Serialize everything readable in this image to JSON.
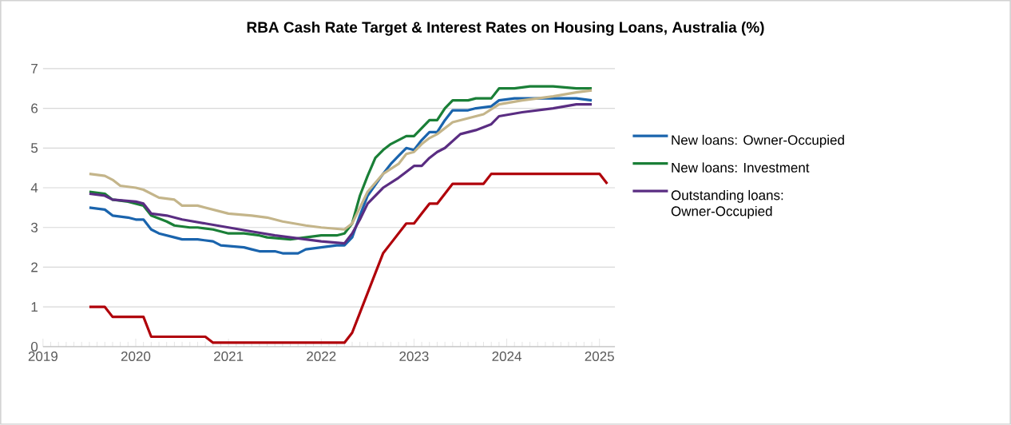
{
  "chart_data": {
    "type": "line",
    "title": "RBA Cash Rate Target & Interest Rates on Housing Loans, Australia (%)",
    "xlim": [
      "2019-01",
      "2025-03"
    ],
    "xticks": [
      "2019",
      "2020",
      "2021",
      "2022",
      "2023",
      "2024",
      "2025"
    ],
    "ylim": [
      0,
      7
    ],
    "yticks": [
      0,
      1,
      2,
      3,
      4,
      5,
      6,
      7
    ],
    "grid": "y",
    "legend": "right",
    "series": [
      {
        "name": "New loans: Owner-Occupied",
        "color": "#1a64ad",
        "x": [
          "2019-07",
          "2019-09",
          "2019-10",
          "2019-12",
          "2020-01",
          "2020-02",
          "2020-03",
          "2020-04",
          "2020-06",
          "2020-07",
          "2020-09",
          "2020-11",
          "2020-12",
          "2021-03",
          "2021-04",
          "2021-05",
          "2021-07",
          "2021-08",
          "2021-10",
          "2021-11",
          "2022-01",
          "2022-03",
          "2022-04",
          "2022-05",
          "2022-06",
          "2022-07",
          "2022-09",
          "2022-10",
          "2022-11",
          "2022-12",
          "2023-01",
          "2023-02",
          "2023-03",
          "2023-04",
          "2023-05",
          "2023-06",
          "2023-08",
          "2023-09",
          "2023-11",
          "2023-12",
          "2024-02",
          "2024-07",
          "2024-10",
          "2024-12"
        ],
        "values": [
          3.5,
          3.45,
          3.3,
          3.25,
          3.2,
          3.2,
          2.95,
          2.85,
          2.75,
          2.7,
          2.7,
          2.65,
          2.55,
          2.5,
          2.45,
          2.4,
          2.4,
          2.35,
          2.35,
          2.45,
          2.5,
          2.55,
          2.55,
          2.75,
          3.3,
          3.8,
          4.35,
          4.6,
          4.8,
          5.0,
          4.95,
          5.2,
          5.4,
          5.4,
          5.7,
          5.95,
          5.95,
          6.0,
          6.05,
          6.2,
          6.25,
          6.25,
          6.25,
          6.2
        ]
      },
      {
        "name": "New loans: Investment",
        "color": "#1a7f37",
        "x": [
          "2019-07",
          "2019-09",
          "2019-10",
          "2019-12",
          "2020-01",
          "2020-02",
          "2020-03",
          "2020-05",
          "2020-06",
          "2020-08",
          "2020-09",
          "2020-11",
          "2021-01",
          "2021-03",
          "2021-05",
          "2021-06",
          "2021-09",
          "2021-11",
          "2022-01",
          "2022-03",
          "2022-04",
          "2022-05",
          "2022-06",
          "2022-07",
          "2022-08",
          "2022-09",
          "2022-10",
          "2022-12",
          "2023-01",
          "2023-02",
          "2023-03",
          "2023-04",
          "2023-05",
          "2023-06",
          "2023-08",
          "2023-09",
          "2023-11",
          "2023-12",
          "2024-02",
          "2024-04",
          "2024-07",
          "2024-10",
          "2024-12"
        ],
        "values": [
          3.9,
          3.85,
          3.7,
          3.65,
          3.6,
          3.55,
          3.3,
          3.15,
          3.05,
          3.0,
          3.0,
          2.95,
          2.85,
          2.85,
          2.8,
          2.75,
          2.7,
          2.75,
          2.8,
          2.8,
          2.85,
          3.1,
          3.8,
          4.3,
          4.75,
          4.95,
          5.1,
          5.3,
          5.3,
          5.5,
          5.7,
          5.7,
          6.0,
          6.2,
          6.2,
          6.25,
          6.25,
          6.5,
          6.5,
          6.55,
          6.55,
          6.5,
          6.5
        ]
      },
      {
        "color": "#c4b58a",
        "x": [
          "2019-07",
          "2019-09",
          "2019-10",
          "2019-11",
          "2020-01",
          "2020-02",
          "2020-04",
          "2020-06",
          "2020-07",
          "2020-09",
          "2020-11",
          "2021-01",
          "2021-04",
          "2021-06",
          "2021-08",
          "2021-11",
          "2022-01",
          "2022-04",
          "2022-05",
          "2022-06",
          "2022-07",
          "2022-09",
          "2022-11",
          "2022-12",
          "2023-01",
          "2023-02",
          "2023-03",
          "2023-04",
          "2023-06",
          "2023-08",
          "2023-10",
          "2023-12",
          "2024-03",
          "2024-07",
          "2024-10",
          "2024-12"
        ],
        "values": [
          4.35,
          4.3,
          4.2,
          4.05,
          4.0,
          3.95,
          3.75,
          3.7,
          3.55,
          3.55,
          3.45,
          3.35,
          3.3,
          3.25,
          3.15,
          3.05,
          3.0,
          2.95,
          3.1,
          3.5,
          3.9,
          4.35,
          4.6,
          4.85,
          4.9,
          5.1,
          5.25,
          5.35,
          5.65,
          5.75,
          5.85,
          6.1,
          6.2,
          6.3,
          6.4,
          6.45
        ]
      },
      {
        "name": "Outstanding loans: Owner-Occupied",
        "color": "#5a2d82",
        "x": [
          "2019-07",
          "2019-09",
          "2019-10",
          "2020-01",
          "2020-02",
          "2020-03",
          "2020-05",
          "2020-07",
          "2020-10",
          "2021-01",
          "2021-04",
          "2021-07",
          "2021-09",
          "2021-11",
          "2022-01",
          "2022-04",
          "2022-05",
          "2022-06",
          "2022-07",
          "2022-09",
          "2022-11",
          "2023-01",
          "2023-02",
          "2023-03",
          "2023-04",
          "2023-05",
          "2023-07",
          "2023-09",
          "2023-11",
          "2023-12",
          "2024-03",
          "2024-07",
          "2024-10",
          "2024-12"
        ],
        "values": [
          3.85,
          3.8,
          3.7,
          3.65,
          3.6,
          3.35,
          3.3,
          3.2,
          3.1,
          3.0,
          2.9,
          2.8,
          2.75,
          2.7,
          2.65,
          2.6,
          2.85,
          3.2,
          3.6,
          4.0,
          4.25,
          4.55,
          4.55,
          4.75,
          4.9,
          5.0,
          5.35,
          5.45,
          5.6,
          5.8,
          5.9,
          6.0,
          6.1,
          6.1
        ]
      },
      {
        "color": "#b0000a",
        "x": [
          "2019-07",
          "2019-09",
          "2019-10",
          "2020-02",
          "2020-03",
          "2020-10",
          "2020-11",
          "2022-04",
          "2022-05",
          "2022-06",
          "2022-07",
          "2022-08",
          "2022-09",
          "2022-10",
          "2022-11",
          "2022-12",
          "2023-01",
          "2023-02",
          "2023-03",
          "2023-04",
          "2023-05",
          "2023-06",
          "2023-10",
          "2023-11",
          "2025-01",
          "2025-02"
        ],
        "values": [
          1.0,
          1.0,
          0.75,
          0.75,
          0.25,
          0.25,
          0.1,
          0.1,
          0.35,
          0.85,
          1.35,
          1.85,
          2.35,
          2.6,
          2.85,
          3.1,
          3.1,
          3.35,
          3.6,
          3.6,
          3.85,
          4.1,
          4.1,
          4.35,
          4.35,
          4.1
        ]
      }
    ]
  }
}
